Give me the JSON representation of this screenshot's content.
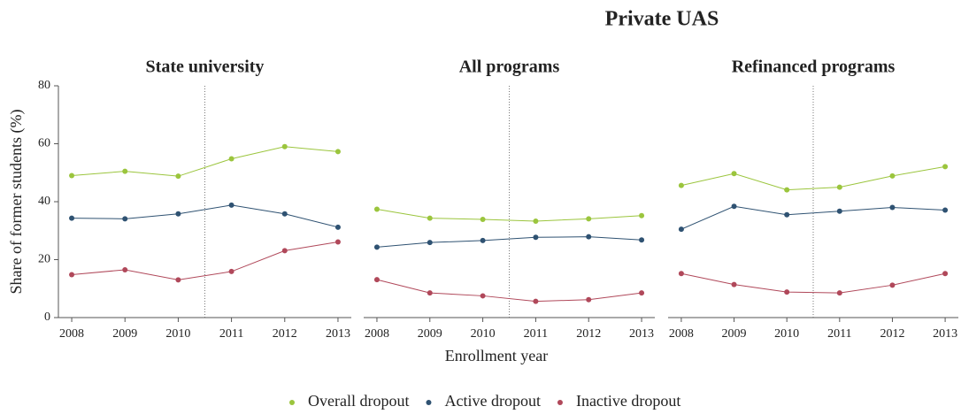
{
  "title": "Private UAS",
  "xlabel": "Enrollment year",
  "ylabel": "Share of former students (%)",
  "legend": [
    {
      "name": "Overall dropout",
      "color": "#9bc53d"
    },
    {
      "name": "Active dropout",
      "color": "#2f5272"
    },
    {
      "name": "Inactive dropout",
      "color": "#b0485a"
    }
  ],
  "chart_data": [
    {
      "type": "line",
      "title": "State university",
      "x": [
        2008,
        2009,
        2010,
        2011,
        2012,
        2013
      ],
      "xlim": [
        2007.75,
        2013.25
      ],
      "xticks": [
        2008,
        2009,
        2010,
        2011,
        2012,
        2013
      ],
      "ylim": [
        0,
        80
      ],
      "yticks": [
        0,
        20,
        40,
        60,
        80
      ],
      "vline": 2010.5,
      "series": [
        {
          "values": [
            49,
            50.5,
            48.8,
            54.8,
            59,
            57.3
          ]
        },
        {
          "values": [
            34.3,
            34.1,
            35.8,
            38.8,
            35.8,
            31.2
          ]
        },
        {
          "values": [
            14.8,
            16.5,
            13,
            15.9,
            23.1,
            26.1
          ]
        }
      ]
    },
    {
      "type": "line",
      "title": "All programs",
      "x": [
        2008,
        2009,
        2010,
        2011,
        2012,
        2013
      ],
      "xlim": [
        2007.75,
        2013.25
      ],
      "xticks": [
        2008,
        2009,
        2010,
        2011,
        2012,
        2013
      ],
      "ylim": [
        0,
        80
      ],
      "vline": 2010.5,
      "series": [
        {
          "values": [
            37.4,
            34.3,
            33.9,
            33.3,
            34.1,
            35.2
          ]
        },
        {
          "values": [
            24.3,
            25.9,
            26.6,
            27.7,
            27.9,
            26.8
          ]
        },
        {
          "values": [
            13.1,
            8.5,
            7.5,
            5.6,
            6.2,
            8.5
          ]
        }
      ]
    },
    {
      "type": "line",
      "title": "Refinanced programs",
      "x": [
        2008,
        2009,
        2010,
        2011,
        2012,
        2013
      ],
      "xlim": [
        2007.75,
        2013.25
      ],
      "xticks": [
        2008,
        2009,
        2010,
        2011,
        2012,
        2013
      ],
      "ylim": [
        0,
        80
      ],
      "vline": 2010.5,
      "series": [
        {
          "values": [
            45.6,
            49.7,
            44.1,
            45,
            48.9,
            52.1
          ]
        },
        {
          "values": [
            30.5,
            38.4,
            35.5,
            36.7,
            38,
            37.1
          ]
        },
        {
          "values": [
            15.2,
            11.4,
            8.8,
            8.5,
            11.2,
            15.2
          ]
        }
      ]
    }
  ]
}
